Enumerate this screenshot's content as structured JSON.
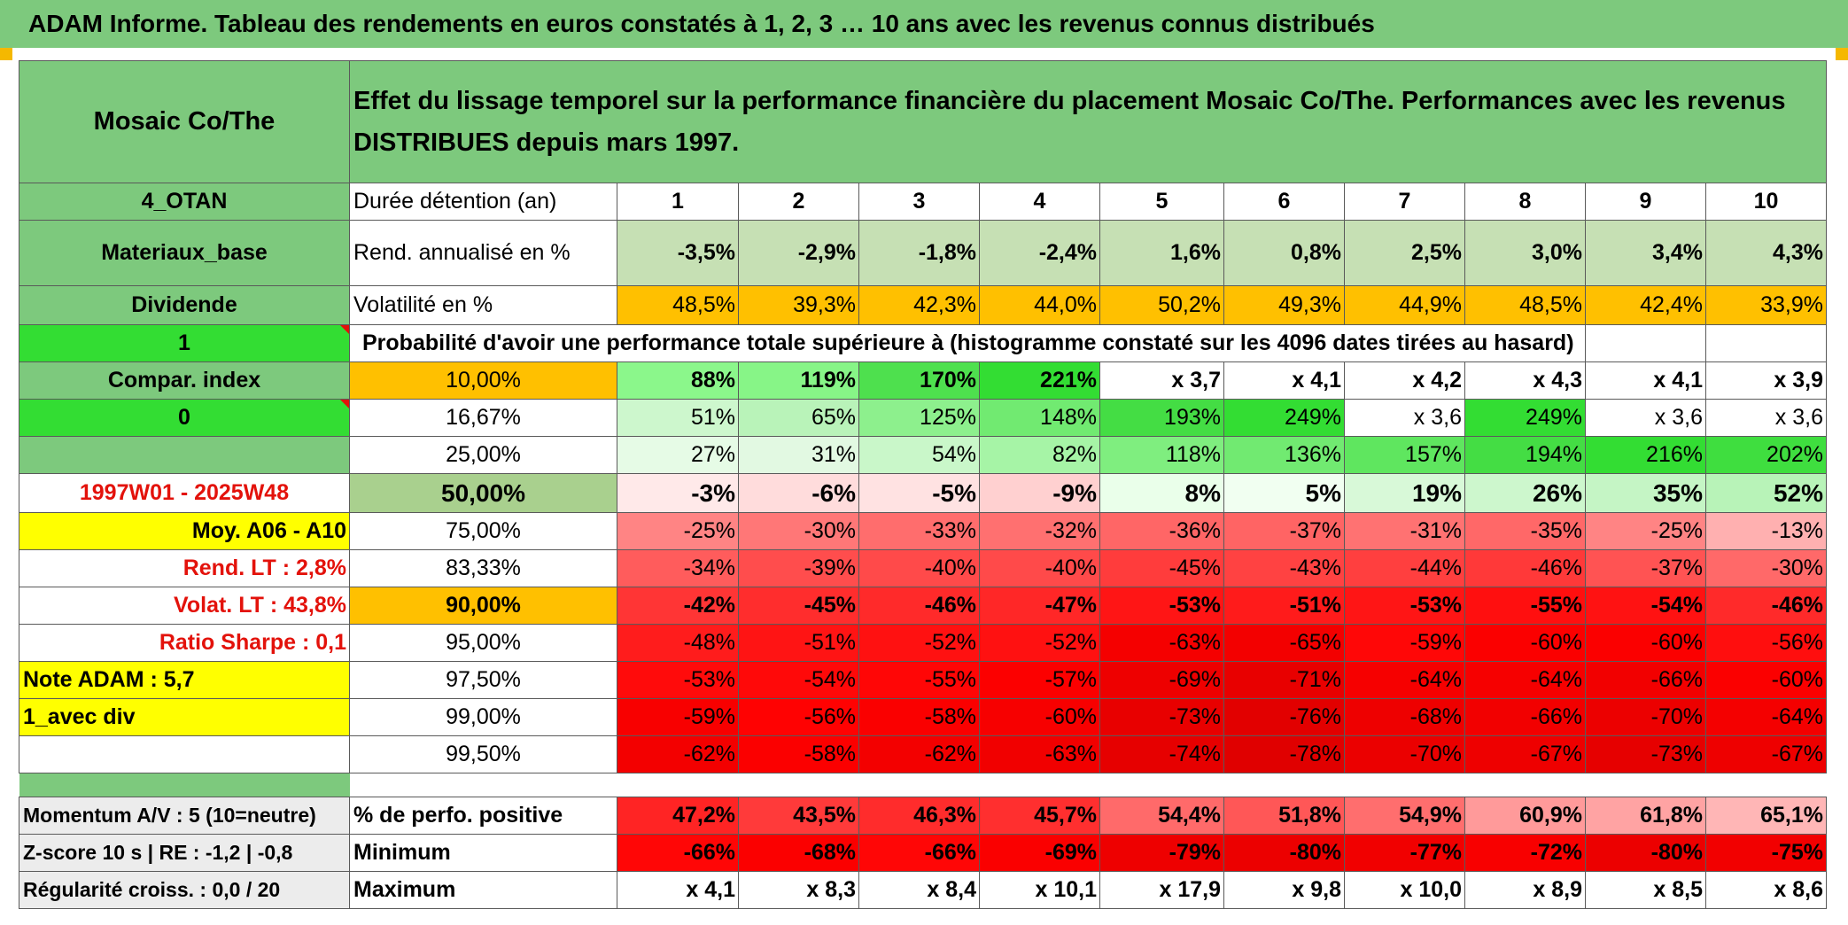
{
  "title": "ADAM Informe. Tableau des rendements en euros constatés à 1, 2, 3 … 10 ans avec les revenus connus distribués",
  "sidebar": {
    "name": "Mosaic Co/The",
    "group": "4_OTAN",
    "sector": "Materiaux_base",
    "dividend_label": "Dividende",
    "flag1": "1",
    "compar_label": "Compar. index",
    "flag0": "0",
    "period": "1997W01 - 2025W48",
    "moy": "Moy. A06 - A10",
    "rend_lt": "Rend. LT :   2,8%",
    "volat_lt": "Volat. LT :   43,8%",
    "sharpe": "Ratio Sharpe :   0,1",
    "note": "Note ADAM : 5,7",
    "div_mode": "1_avec div"
  },
  "header_text": "Effet du lissage temporel sur la performance financière du placement Mosaic Co/The. Performances avec les revenus DISTRIBUES depuis mars 1997.",
  "duration_label": "Durée détention (an)",
  "years": [
    "1",
    "2",
    "3",
    "4",
    "5",
    "6",
    "7",
    "8",
    "9",
    "10"
  ],
  "rend_label": "Rend. annualisé en %",
  "rend": [
    "-3,5%",
    "-2,9%",
    "-1,8%",
    "-2,4%",
    "1,6%",
    "0,8%",
    "2,5%",
    "3,0%",
    "3,4%",
    "4,3%"
  ],
  "vol_label": "Volatilité en %",
  "vol": [
    "48,5%",
    "39,3%",
    "42,3%",
    "44,0%",
    "50,2%",
    "49,3%",
    "44,9%",
    "48,5%",
    "42,4%",
    "33,9%"
  ],
  "prob_label": "Probabilité d'avoir une performance totale supérieure à (histogramme constaté sur les 4096 dates tirées au hasard)",
  "quantiles": [
    {
      "p": "10,00%",
      "v": [
        "88%",
        "119%",
        "170%",
        "221%",
        "x 3,7",
        "x 4,1",
        "x 4,2",
        "x 4,3",
        "x 4,1",
        "x 3,9"
      ]
    },
    {
      "p": "16,67%",
      "v": [
        "51%",
        "65%",
        "125%",
        "148%",
        "193%",
        "249%",
        "x 3,6",
        "249%",
        "x 3,6",
        "x 3,6"
      ]
    },
    {
      "p": "25,00%",
      "v": [
        "27%",
        "31%",
        "54%",
        "82%",
        "118%",
        "136%",
        "157%",
        "194%",
        "216%",
        "202%"
      ]
    },
    {
      "p": "50,00%",
      "v": [
        "-3%",
        "-6%",
        "-5%",
        "-9%",
        "8%",
        "5%",
        "19%",
        "26%",
        "35%",
        "52%"
      ]
    },
    {
      "p": "75,00%",
      "v": [
        "-25%",
        "-30%",
        "-33%",
        "-32%",
        "-36%",
        "-37%",
        "-31%",
        "-35%",
        "-25%",
        "-13%"
      ]
    },
    {
      "p": "83,33%",
      "v": [
        "-34%",
        "-39%",
        "-40%",
        "-40%",
        "-45%",
        "-43%",
        "-44%",
        "-46%",
        "-37%",
        "-30%"
      ]
    },
    {
      "p": "90,00%",
      "v": [
        "-42%",
        "-45%",
        "-46%",
        "-47%",
        "-53%",
        "-51%",
        "-53%",
        "-55%",
        "-54%",
        "-46%"
      ]
    },
    {
      "p": "95,00%",
      "v": [
        "-48%",
        "-51%",
        "-52%",
        "-52%",
        "-63%",
        "-65%",
        "-59%",
        "-60%",
        "-60%",
        "-56%"
      ]
    },
    {
      "p": "97,50%",
      "v": [
        "-53%",
        "-54%",
        "-55%",
        "-57%",
        "-69%",
        "-71%",
        "-64%",
        "-64%",
        "-66%",
        "-60%"
      ]
    },
    {
      "p": "99,00%",
      "v": [
        "-59%",
        "-56%",
        "-58%",
        "-60%",
        "-73%",
        "-76%",
        "-68%",
        "-66%",
        "-70%",
        "-64%"
      ]
    },
    {
      "p": "99,50%",
      "v": [
        "-62%",
        "-58%",
        "-62%",
        "-63%",
        "-74%",
        "-78%",
        "-70%",
        "-67%",
        "-73%",
        "-67%"
      ]
    }
  ],
  "footer": {
    "momentum": "Momentum A/V : 5 (10=neutre)",
    "zscore": "Z-score 10 s | RE : -1,2 | -0,8",
    "regul": "Régularité croiss. : 0,0 / 20",
    "pos_label": "% de perfo. positive",
    "pos": [
      "47,2%",
      "43,5%",
      "46,3%",
      "45,7%",
      "54,4%",
      "51,8%",
      "54,9%",
      "60,9%",
      "61,8%",
      "65,1%"
    ],
    "min_label": "Minimum",
    "min": [
      "-66%",
      "-68%",
      "-66%",
      "-69%",
      "-79%",
      "-80%",
      "-77%",
      "-72%",
      "-80%",
      "-75%"
    ],
    "max_label": "Maximum",
    "max": [
      "x 4,1",
      "x 8,3",
      "x 8,4",
      "x 10,1",
      "x 17,9",
      "x 9,8",
      "x 10,0",
      "x 8,9",
      "x 8,5",
      "x 8,6"
    ]
  },
  "colors": {
    "label_green": "#7dc97d",
    "rend_bg": "#c6e0b4",
    "vol_bg": "#ffc000",
    "flag_green": "#33dd33",
    "yellow": "#ffff00",
    "red_text": "#e3120b"
  },
  "cell_colors": {
    "q": [
      [
        "#8bf78b",
        "#87f587",
        "#4ee04e",
        "#33dd33",
        "#ffffff",
        "#ffffff",
        "#ffffff",
        "#ffffff",
        "#ffffff",
        "#ffffff"
      ],
      [
        "#cdf7cd",
        "#b9f3b9",
        "#8df08d",
        "#71ea71",
        "#44dd44",
        "#33dd33",
        "#ffffff",
        "#33dd33",
        "#ffffff",
        "#ffffff"
      ],
      [
        "#e6fbe6",
        "#e2f9e2",
        "#c9f7c9",
        "#a6f4a6",
        "#7fee7f",
        "#71ea71",
        "#5fe65f",
        "#44dd44",
        "#33dd33",
        "#3fde3f"
      ],
      [
        "#ffe9e9",
        "#ffdcdc",
        "#ffe2e2",
        "#ffd0d0",
        "#eaffea",
        "#f1fff1",
        "#d8f9d8",
        "#cdf7cd",
        "#c5f5c5",
        "#b8f3b8"
      ],
      [
        "#ff8484",
        "#ff7777",
        "#ff6d6d",
        "#ff7070",
        "#ff6666",
        "#ff6464",
        "#ff7272",
        "#ff6868",
        "#ff8484",
        "#ffb0b0"
      ],
      [
        "#ff5c5c",
        "#ff4d4d",
        "#ff4a4a",
        "#ff4a4a",
        "#ff3c3c",
        "#ff4242",
        "#ff3f3f",
        "#ff3939",
        "#ff5353",
        "#ff6969"
      ],
      [
        "#ff3535",
        "#ff2d2d",
        "#ff2a2a",
        "#ff2727",
        "#ff1515",
        "#ff1b1b",
        "#ff1515",
        "#ff0f0f",
        "#ff1212",
        "#ff2a2a"
      ],
      [
        "#ff1c1c",
        "#ff1414",
        "#ff1111",
        "#ff1111",
        "#f50000",
        "#f30000",
        "#ff0707",
        "#fb0000",
        "#fb0000",
        "#ff0e0e"
      ],
      [
        "#ff0b0b",
        "#ff0909",
        "#ff0606",
        "#fc0000",
        "#ee0000",
        "#e80000",
        "#f60000",
        "#f60000",
        "#f20000",
        "#fb0000"
      ],
      [
        "#f80000",
        "#ff0202",
        "#fa0000",
        "#f70000",
        "#e80000",
        "#e20000",
        "#ee0000",
        "#f20000",
        "#ec0000",
        "#f40000"
      ],
      [
        "#f30000",
        "#fb0000",
        "#f30000",
        "#f10000",
        "#e60000",
        "#e00000",
        "#eb0000",
        "#ee0000",
        "#e60000",
        "#ee0000"
      ]
    ],
    "pos": [
      "#ff2424",
      "#ff3a3a",
      "#ff2c2c",
      "#ff2f2f",
      "#ff6a6a",
      "#ff5757",
      "#ff6e6e",
      "#ff9a9a",
      "#ffa3a3",
      "#ffb6b6"
    ],
    "min": [
      "#ff0606",
      "#fb0000",
      "#ff0606",
      "#fa0000",
      "#ee0000",
      "#ec0000",
      "#f10000",
      "#f80000",
      "#ec0000",
      "#f20000"
    ]
  }
}
